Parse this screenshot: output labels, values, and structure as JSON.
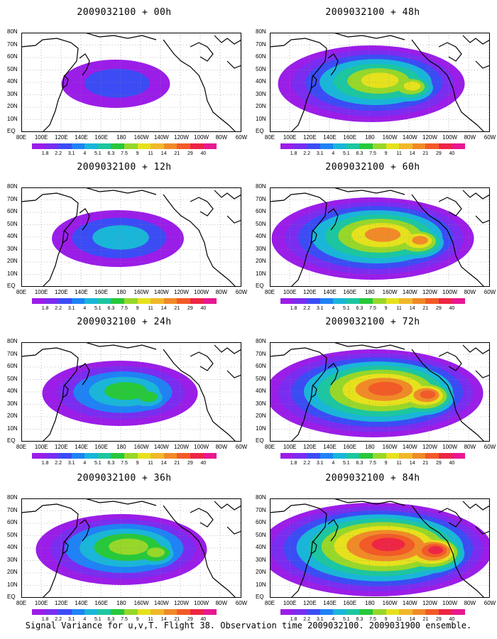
{
  "panels": [
    {
      "title": "2009032100 + 00h",
      "intensity": 0.15
    },
    {
      "title": "2009032100 + 12h",
      "intensity": 0.3
    },
    {
      "title": "2009032100 + 24h",
      "intensity": 0.45
    },
    {
      "title": "2009032100 + 36h",
      "intensity": 0.55
    },
    {
      "title": "2009032100 + 48h",
      "intensity": 0.65
    },
    {
      "title": "2009032100 + 60h",
      "intensity": 0.75
    },
    {
      "title": "2009032100 + 72h",
      "intensity": 0.85
    },
    {
      "title": "2009032100 + 84h",
      "intensity": 0.95
    }
  ],
  "lat_labels": [
    "80N",
    "70N",
    "60N",
    "50N",
    "40N",
    "30N",
    "20N",
    "10N",
    "EQ"
  ],
  "lon_labels": [
    "80E",
    "100E",
    "120E",
    "140E",
    "160E",
    "180",
    "160W",
    "140W",
    "120W",
    "100W",
    "80W",
    "60W"
  ],
  "colorbar": {
    "colors": [
      "#9b1de8",
      "#7a2df0",
      "#3b4cf5",
      "#1f82f5",
      "#19b6d9",
      "#1cc6a0",
      "#27c83a",
      "#97d72a",
      "#e6e11d",
      "#f0b82a",
      "#f08a28",
      "#f25a27",
      "#ee2545",
      "#e81891"
    ],
    "ticks": [
      "1.8",
      "2.2",
      "3.1",
      "4",
      "5.1",
      "6.3",
      "7.5",
      "9",
      "11",
      "14",
      "21",
      "29",
      "40"
    ]
  },
  "footer": "Signal Variance for u,v,T. Flight 38. Observation time 2009032100. 2009031900 ensemble."
}
